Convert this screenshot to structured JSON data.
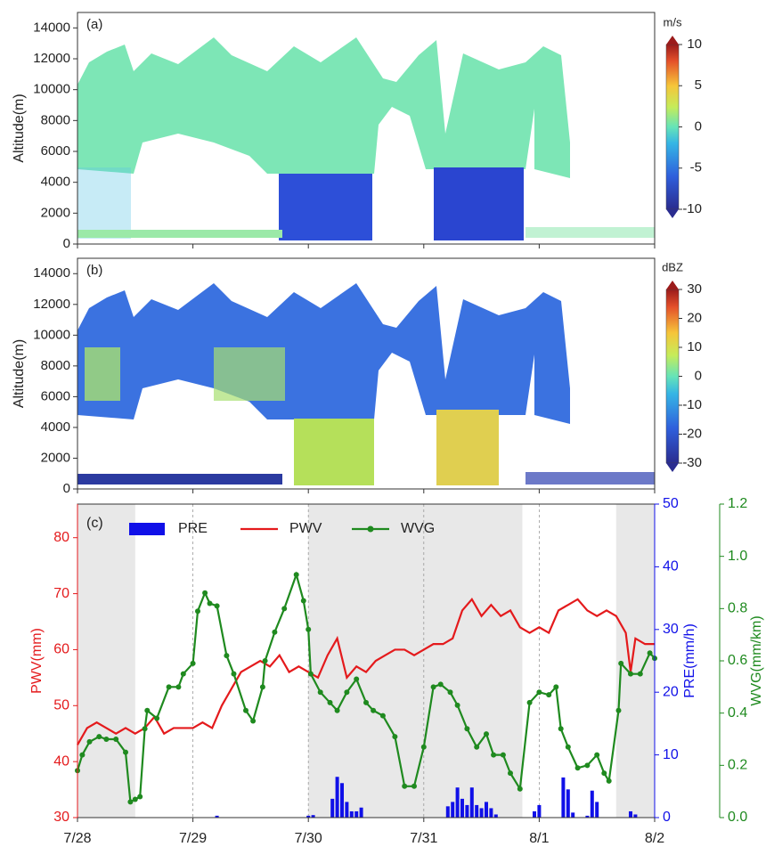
{
  "chart_data": [
    {
      "type": "heatmap",
      "label": "(a)",
      "ylabel": "Altitude(m)",
      "xlim": [
        0,
        120
      ],
      "xticks": [
        0,
        24,
        48,
        72,
        96,
        120
      ],
      "ylim": [
        0,
        15000
      ],
      "yticks": [
        0,
        2000,
        4000,
        6000,
        8000,
        10000,
        12000,
        14000
      ],
      "colorbar": {
        "label": "m/s",
        "lim": [
          -10,
          10
        ],
        "ticks": [
          -10,
          -5,
          0,
          5,
          10
        ]
      }
    },
    {
      "type": "heatmap",
      "label": "(b)",
      "ylabel": "Altitude(m)",
      "xlim": [
        0,
        120
      ],
      "xticks": [
        0,
        24,
        48,
        72,
        96,
        120
      ],
      "ylim": [
        0,
        15000
      ],
      "yticks": [
        0,
        2000,
        4000,
        6000,
        8000,
        10000,
        12000,
        14000
      ],
      "colorbar": {
        "label": "dBZ",
        "lim": [
          -30,
          30
        ],
        "ticks": [
          -30,
          -20,
          -10,
          0,
          10,
          20,
          30
        ]
      }
    },
    {
      "type": "combo",
      "label": "(c)",
      "xlim": [
        0,
        120
      ],
      "xticks": [
        {
          "value": 0,
          "label": "7/28"
        },
        {
          "value": 24,
          "label": "7/29"
        },
        {
          "value": 48,
          "label": "7/30"
        },
        {
          "value": 72,
          "label": "7/31"
        },
        {
          "value": 96,
          "label": "8/1"
        },
        {
          "value": 120,
          "label": "8/2"
        }
      ],
      "ylabel": "PWV(mm)",
      "ylim": [
        30,
        86
      ],
      "yticks": [
        30,
        40,
        50,
        60,
        70,
        80
      ],
      "y2label": "PRE(mm/h)",
      "y2lim": [
        0,
        50
      ],
      "y2ticks": [
        0,
        10,
        20,
        30,
        40,
        50
      ],
      "y3label": "WVG(mm/km)",
      "y3lim": [
        0,
        1.2
      ],
      "y3ticks": [
        {
          "value": 0,
          "label": "0.0"
        },
        0.2,
        0.4,
        0.6,
        0.8,
        {
          "value": 1,
          "label": "1.0"
        },
        1.2
      ],
      "shaded": [
        [
          0,
          12
        ],
        [
          48,
          92.5
        ],
        [
          112,
          120
        ]
      ],
      "grid": true,
      "series": [
        {
          "name": "PRE",
          "type": "bar",
          "axis": "y2",
          "color": "#1010e8",
          "x": [
            29,
            48,
            49,
            53,
            54,
            55,
            56,
            57,
            58,
            59,
            77,
            78,
            79,
            80,
            81,
            82,
            83,
            84,
            85,
            86,
            87,
            95,
            96,
            101,
            102,
            103,
            106,
            107,
            108,
            115,
            116
          ],
          "values": [
            0.3,
            0.3,
            0.4,
            3,
            6.5,
            5.5,
            2.5,
            1,
            1,
            1.6,
            1.8,
            2.5,
            4.8,
            3,
            2,
            4.8,
            2,
            1.5,
            2.5,
            1.5,
            0.5,
            1,
            2,
            6.4,
            4.5,
            0.8,
            0.3,
            4.3,
            2.5,
            1,
            0.5
          ]
        },
        {
          "name": "PWV",
          "type": "line",
          "color": "#e41a1c",
          "x": [
            0,
            2,
            4,
            6,
            8,
            10,
            12,
            14,
            16,
            18,
            20,
            22,
            24,
            26,
            28,
            30,
            32,
            34,
            36,
            38,
            40,
            42,
            44,
            46,
            48,
            50,
            52,
            54,
            56,
            58,
            60,
            62,
            64,
            66,
            68,
            70,
            72,
            74,
            76,
            78,
            80,
            82,
            84,
            86,
            88,
            90,
            92,
            94,
            96,
            98,
            100,
            102,
            104,
            106,
            108,
            110,
            112,
            114,
            115,
            116,
            118,
            120
          ],
          "values": [
            43,
            46,
            47,
            46,
            45,
            46,
            45,
            46,
            48,
            45,
            46,
            46,
            46,
            47,
            46,
            50,
            53,
            56,
            57,
            58,
            57,
            59,
            56,
            57,
            56,
            55,
            59,
            62,
            55,
            57,
            56,
            58,
            59,
            60,
            60,
            59,
            60,
            61,
            61,
            62,
            67,
            69,
            66,
            68,
            66,
            67,
            64,
            63,
            64,
            63,
            67,
            68,
            69,
            67,
            66,
            67,
            66,
            63,
            56,
            62,
            61,
            61
          ]
        },
        {
          "name": "WVG",
          "type": "line",
          "axis": "y3",
          "marker": true,
          "color": "#1f8a1f",
          "x": [
            0,
            1,
            2.5,
            4.5,
            6,
            8,
            10,
            11,
            12,
            13,
            14,
            14.5,
            16.5,
            19,
            21,
            22,
            24,
            25,
            26.5,
            27.5,
            29,
            31,
            32.5,
            35,
            36.5,
            38.5,
            39,
            41,
            43,
            45.5,
            47,
            48,
            48.5,
            50.5,
            52.5,
            54,
            56,
            58,
            60,
            61.5,
            63.5,
            66,
            68,
            70,
            72,
            74,
            75.5,
            77.5,
            79,
            81,
            83,
            85,
            86.5,
            88.5,
            90,
            92,
            94,
            96,
            98,
            99.5,
            100.5,
            102,
            104,
            106,
            108,
            109.5,
            110.5,
            112.5,
            113,
            115,
            117,
            119,
            120
          ],
          "values": [
            0.18,
            0.24,
            0.29,
            0.31,
            0.3,
            0.3,
            0.25,
            0.06,
            0.07,
            0.08,
            0.34,
            0.41,
            0.38,
            0.5,
            0.5,
            0.55,
            0.59,
            0.79,
            0.86,
            0.82,
            0.81,
            0.62,
            0.55,
            0.41,
            0.37,
            0.5,
            0.6,
            0.71,
            0.8,
            0.93,
            0.83,
            0.72,
            0.55,
            0.48,
            0.44,
            0.41,
            0.48,
            0.53,
            0.44,
            0.41,
            0.39,
            0.31,
            0.12,
            0.12,
            0.27,
            0.5,
            0.51,
            0.48,
            0.43,
            0.34,
            0.27,
            0.32,
            0.24,
            0.24,
            0.17,
            0.11,
            0.44,
            0.48,
            0.47,
            0.5,
            0.34,
            0.27,
            0.19,
            0.2,
            0.24,
            0.17,
            0.14,
            0.41,
            0.59,
            0.55,
            0.55,
            0.63,
            0.61
          ]
        }
      ]
    }
  ]
}
